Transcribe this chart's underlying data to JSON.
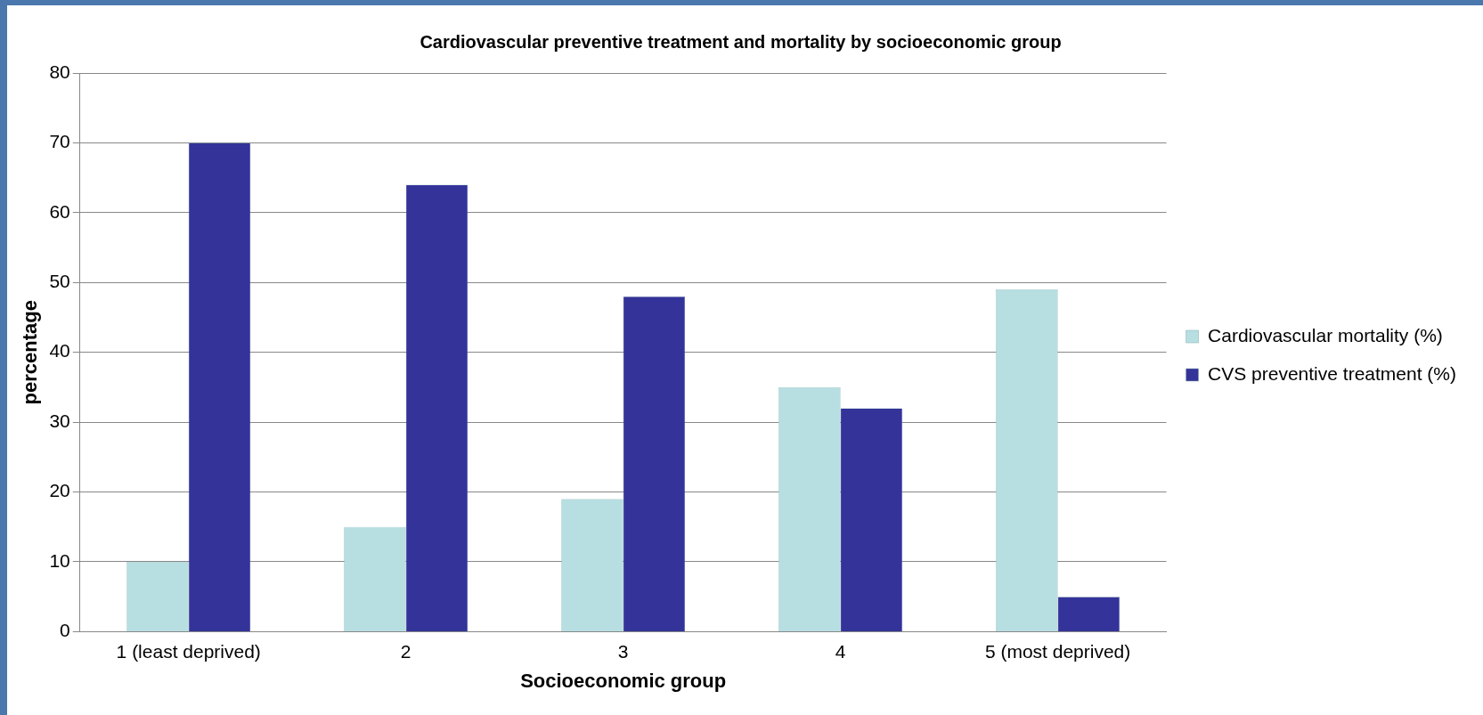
{
  "chart_data": {
    "type": "bar",
    "title": "Cardiovascular preventive treatment and mortality by socioeconomic group",
    "xlabel": "Socioeconomic group",
    "ylabel": "percentage",
    "categories": [
      "1 (least deprived)",
      "2",
      "3",
      "4",
      "5 (most deprived)"
    ],
    "series": [
      {
        "name": "Cardiovascular mortality (%)",
        "color": "#b7dfe2",
        "values": [
          10,
          15,
          19,
          35,
          49
        ]
      },
      {
        "name": "CVS preventive treatment (%)",
        "color": "#333399",
        "values": [
          70,
          64,
          48,
          32,
          5
        ]
      }
    ],
    "ylim": [
      0,
      80
    ],
    "yticks": [
      0,
      10,
      20,
      30,
      40,
      50,
      60,
      70,
      80
    ],
    "grid": "y",
    "legend": "right"
  }
}
